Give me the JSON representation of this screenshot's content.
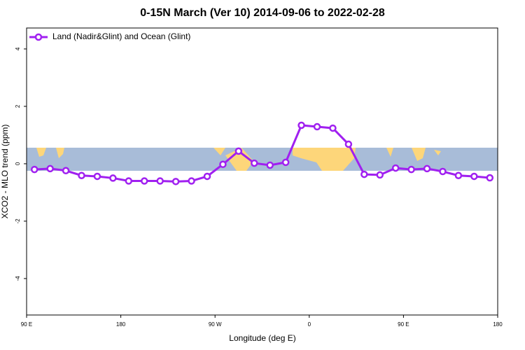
{
  "chart_data": {
    "type": "line",
    "title": "0-15N March (Ver 10)   2014-09-06 to 2022-02-28",
    "x_label": "Longitude (deg E)",
    "y_label": "XCO2 - MLO trend (ppm)",
    "x": [
      97.5,
      112.5,
      127.5,
      142.5,
      157.5,
      172.5,
      187.5,
      202.5,
      217.5,
      232.5,
      247.5,
      262.5,
      277.5,
      292.5,
      307.5,
      322.5,
      337.5,
      352.5,
      367.5,
      382.5,
      397.5,
      412.5,
      427.5,
      442.5,
      457.5,
      472.5,
      487.5,
      502.5,
      517.5,
      532.5
    ],
    "series": [
      {
        "name": "Land (Nadir&Glint) and Ocean (Glint)",
        "color": "#a020f0",
        "values": [
          -0.2,
          -0.17,
          -0.24,
          -0.41,
          -0.44,
          -0.5,
          -0.6,
          -0.6,
          -0.6,
          -0.62,
          -0.6,
          -0.44,
          -0.02,
          0.44,
          0.02,
          -0.05,
          0.05,
          1.34,
          1.29,
          1.24,
          0.68,
          -0.37,
          -0.39,
          -0.15,
          -0.2,
          -0.17,
          -0.27,
          -0.41,
          -0.44,
          -0.49
        ]
      }
    ],
    "xlim": [
      90,
      540
    ],
    "xticks": [
      {
        "value": 90,
        "label": "90 E"
      },
      180,
      {
        "value": 270,
        "label": "90 W"
      },
      {
        "value": 360,
        "label": "0"
      },
      {
        "value": 450,
        "label": "90 E"
      },
      {
        "value": 540,
        "label": "180"
      }
    ],
    "ylim": [
      -5.27,
      4.73
    ],
    "yticks": [
      -4,
      -2,
      0,
      2,
      4
    ],
    "legend": "top-left"
  }
}
